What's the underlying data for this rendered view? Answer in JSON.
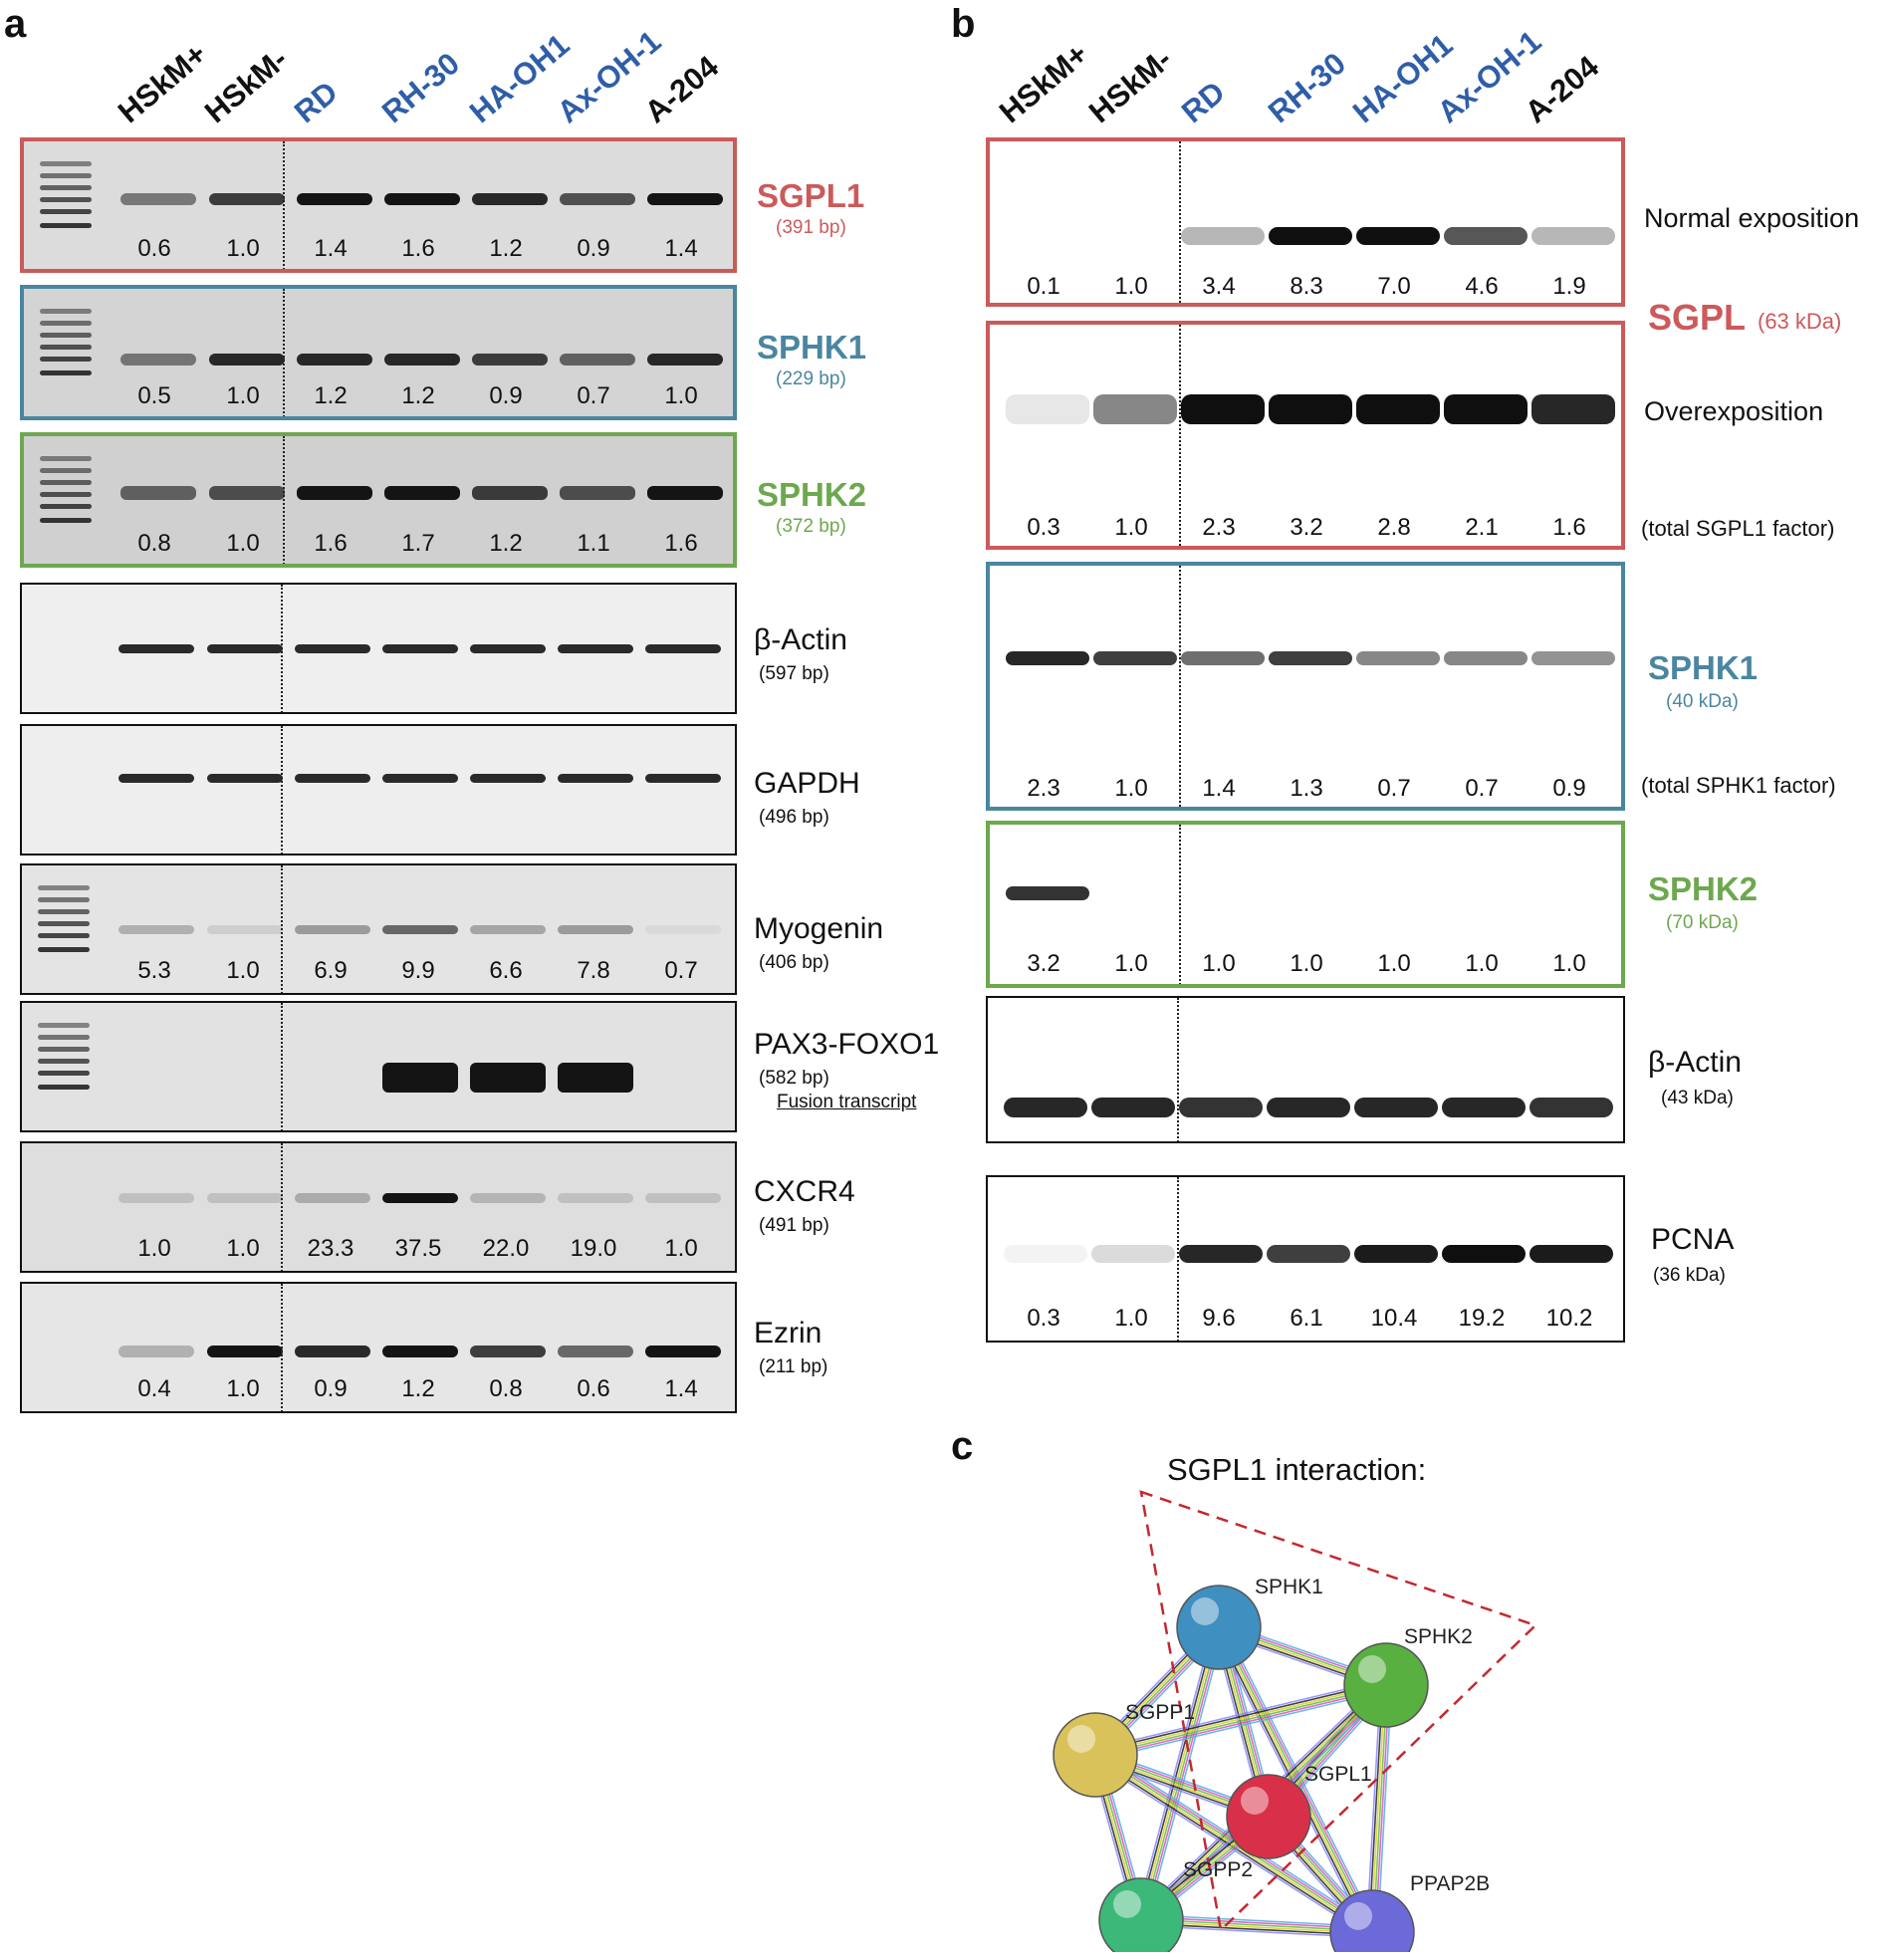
{
  "panel_letters": {
    "a": "a",
    "b": "b",
    "c": "c"
  },
  "lanes_a": [
    "HSkM+",
    "HSkM-",
    "RD",
    "RH-30",
    "HA-OH1",
    "Ax-OH-1",
    "A-204"
  ],
  "lanes_b": [
    "HSkM+",
    "HSkM-",
    "RD",
    "RH-30",
    "HA-OH1",
    "Ax-OH-1",
    "A-204"
  ],
  "colors": {
    "red": "#cc5a5a",
    "blue": "#4a86a0",
    "green": "#6da84e",
    "lane_blue": "#2f5ea8",
    "black": "#111111"
  },
  "panel_a": [
    {
      "gene": "SGPL1",
      "size": "(391 bp)",
      "color": "red",
      "values": [
        "0.6",
        "1.0",
        "1.4",
        "1.6",
        "1.2",
        "0.9",
        "1.4"
      ]
    },
    {
      "gene": "SPHK1",
      "size": "(229 bp)",
      "color": "blue",
      "values": [
        "0.5",
        "1.0",
        "1.2",
        "1.2",
        "0.9",
        "0.7",
        "1.0"
      ]
    },
    {
      "gene": "SPHK2",
      "size": "(372 bp)",
      "color": "green",
      "values": [
        "0.8",
        "1.0",
        "1.6",
        "1.7",
        "1.2",
        "1.1",
        "1.6"
      ]
    },
    {
      "gene": "β-Actin",
      "size": "(597 bp)",
      "color": "black",
      "values": []
    },
    {
      "gene": "GAPDH",
      "size": "(496 bp)",
      "color": "black",
      "values": []
    },
    {
      "gene": "Myogenin",
      "size": "(406 bp)",
      "color": "black",
      "values": [
        "5.3",
        "1.0",
        "6.9",
        "9.9",
        "6.6",
        "7.8",
        "0.7"
      ]
    },
    {
      "gene": "PAX3-FOXO1",
      "size": "(582 bp)",
      "extra": "Fusion transcript",
      "color": "black",
      "values": []
    },
    {
      "gene": "CXCR4",
      "size": "(491 bp)",
      "color": "black",
      "values": [
        "1.0",
        "1.0",
        "23.3",
        "37.5",
        "22.0",
        "19.0",
        "1.0"
      ]
    },
    {
      "gene": "Ezrin",
      "size": "(211 bp)",
      "color": "black",
      "values": [
        "0.4",
        "1.0",
        "0.9",
        "1.2",
        "0.8",
        "0.6",
        "1.4"
      ]
    }
  ],
  "panel_b": {
    "sgpl_normal": {
      "note": "Normal exposition",
      "values": [
        "0.1",
        "1.0",
        "3.4",
        "8.3",
        "7.0",
        "4.6",
        "1.9"
      ]
    },
    "sgpl_label": {
      "gene": "SGPL",
      "size": "(63 kDa)"
    },
    "sgpl_over": {
      "note": "Overexposition",
      "factor": "(total SGPL1 factor)",
      "values": [
        "0.3",
        "1.0",
        "2.3",
        "3.2",
        "2.8",
        "2.1",
        "1.6"
      ]
    },
    "sphk1": {
      "gene": "SPHK1",
      "size": "(40 kDa)",
      "factor": "(total SPHK1 factor)",
      "values": [
        "2.3",
        "1.0",
        "1.4",
        "1.3",
        "0.7",
        "0.7",
        "0.9"
      ]
    },
    "sphk2": {
      "gene": "SPHK2",
      "size": "(70 kDa)",
      "values": [
        "3.2",
        "1.0",
        "1.0",
        "1.0",
        "1.0",
        "1.0",
        "1.0"
      ]
    },
    "actin": {
      "gene": "β-Actin",
      "size": "(43 kDa)"
    },
    "pcna": {
      "gene": "PCNA",
      "size": "(36 kDa)",
      "values": [
        "0.3",
        "1.0",
        "9.6",
        "6.1",
        "10.4",
        "19.2",
        "10.2"
      ]
    }
  },
  "panel_c": {
    "title": "SGPL1 interaction:",
    "nodes": [
      {
        "name": "SPHK1",
        "color": "#3f8fc0"
      },
      {
        "name": "SPHK2",
        "color": "#58b040"
      },
      {
        "name": "SGPP1",
        "color": "#d9c25a"
      },
      {
        "name": "SGPL1",
        "color": "#d9304a"
      },
      {
        "name": "SGPP2",
        "color": "#3cb878"
      },
      {
        "name": "PPAP2B",
        "color": "#6c6ad8"
      }
    ]
  }
}
